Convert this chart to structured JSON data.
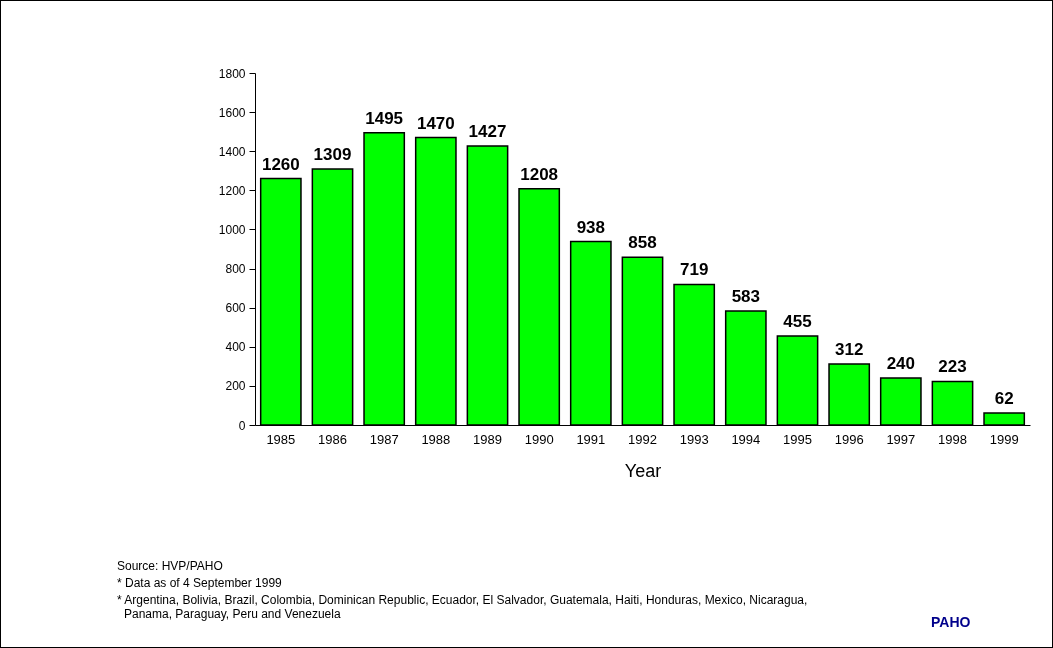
{
  "chart_data": {
    "type": "bar",
    "xlabel": "Year",
    "categories": [
      "1985",
      "1986",
      "1987",
      "1988",
      "1989",
      "1990",
      "1991",
      "1992",
      "1993",
      "1994",
      "1995",
      "1996",
      "1997",
      "1998",
      "1999"
    ],
    "values": [
      1260,
      1309,
      1495,
      1470,
      1427,
      1208,
      938,
      858,
      719,
      583,
      455,
      312,
      240,
      223,
      62
    ],
    "color": "#00ff00",
    "ylim": [
      0,
      1800
    ],
    "yticks": [
      0,
      200,
      400,
      600,
      800,
      1000,
      1200,
      1400,
      1600,
      1800
    ],
    "grid": false,
    "data_labels": true,
    "annotations": [
      "Source: HVP/PAHO",
      "* Data as of 4 September 1999",
      "* Argentina, Bolivia, Brazil, Colombia, Dominican Republic, Ecuador, El Salvador, Guatemala, Haiti, Honduras, Mexico, Nicaragua, Panama, Paraguay, Peru and Venezuela",
      "PAHO"
    ]
  }
}
